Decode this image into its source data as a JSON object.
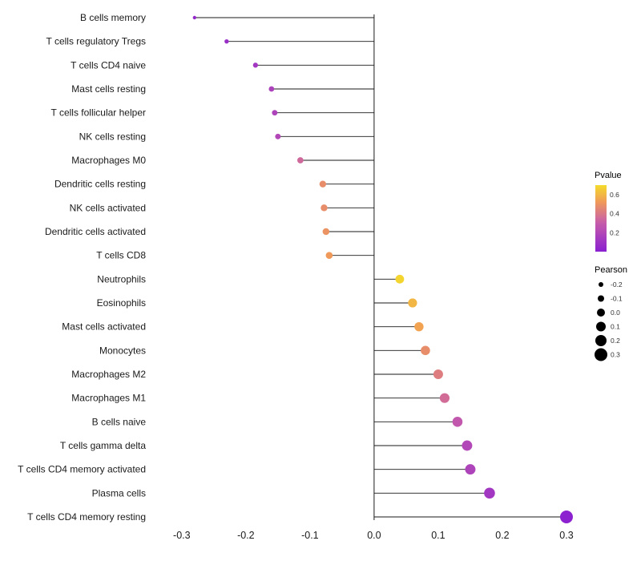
{
  "chart_data": {
    "type": "scatter",
    "subtype": "lollipop",
    "title": "",
    "xlabel": "",
    "ylabel": "",
    "xlim": [
      -0.346,
      0.335
    ],
    "x_ticks": [
      -0.3,
      -0.2,
      -0.1,
      0.0,
      0.1,
      0.2,
      0.3
    ],
    "x_tick_labels": [
      "-0.3",
      "-0.2",
      "-0.1",
      "0.0",
      "0.1",
      "0.2",
      "0.3"
    ],
    "grid": false,
    "stem_color": "#1a1a1a",
    "text_color": "#1a1a1a",
    "points": [
      {
        "label": "B cells memory",
        "pearson": -0.28,
        "pvalue": 0.05
      },
      {
        "label": "T cells regulatory  Tregs",
        "pearson": -0.23,
        "pvalue": 0.08
      },
      {
        "label": "T cells CD4 naive",
        "pearson": -0.185,
        "pvalue": 0.12
      },
      {
        "label": "Mast cells resting",
        "pearson": -0.16,
        "pvalue": 0.17
      },
      {
        "label": "T cells follicular helper",
        "pearson": -0.155,
        "pvalue": 0.18
      },
      {
        "label": "NK cells resting",
        "pearson": -0.15,
        "pvalue": 0.2
      },
      {
        "label": "Macrophages M0",
        "pearson": -0.115,
        "pvalue": 0.35
      },
      {
        "label": "Dendritic cells resting",
        "pearson": -0.08,
        "pvalue": 0.48
      },
      {
        "label": "NK cells activated",
        "pearson": -0.078,
        "pvalue": 0.48
      },
      {
        "label": "Dendritic cells activated",
        "pearson": -0.075,
        "pvalue": 0.5
      },
      {
        "label": "T cells CD8",
        "pearson": -0.07,
        "pvalue": 0.52
      },
      {
        "label": "Neutrophils",
        "pearson": 0.04,
        "pvalue": 0.68
      },
      {
        "label": "Eosinophils",
        "pearson": 0.06,
        "pvalue": 0.6
      },
      {
        "label": "Mast cells activated",
        "pearson": 0.07,
        "pvalue": 0.55
      },
      {
        "label": "Monocytes",
        "pearson": 0.08,
        "pvalue": 0.48
      },
      {
        "label": "Macrophages M2",
        "pearson": 0.1,
        "pvalue": 0.42
      },
      {
        "label": "Macrophages M1",
        "pearson": 0.11,
        "pvalue": 0.36
      },
      {
        "label": "B cells naive",
        "pearson": 0.13,
        "pvalue": 0.28
      },
      {
        "label": "T cells gamma delta",
        "pearson": 0.145,
        "pvalue": 0.2
      },
      {
        "label": "T cells CD4 memory activated",
        "pearson": 0.15,
        "pvalue": 0.18
      },
      {
        "label": "Plasma cells",
        "pearson": 0.18,
        "pvalue": 0.12
      },
      {
        "label": "T cells CD4 memory resting",
        "pearson": 0.3,
        "pvalue": 0.01
      }
    ],
    "legend": {
      "position": "right",
      "color": {
        "title": "Pvalue",
        "domain": [
          0.0,
          0.7
        ],
        "ticks": [
          0.6,
          0.4,
          0.2
        ],
        "tick_labels": [
          "0.6",
          "0.4",
          "0.2"
        ],
        "stops": [
          [
            0.0,
            "#8A1FD1"
          ],
          [
            0.45,
            "#C95FA8"
          ],
          [
            0.75,
            "#F09A58"
          ],
          [
            1.0,
            "#F4DC2A"
          ]
        ]
      },
      "size": {
        "title": "Pearson",
        "ticks": [
          -0.2,
          -0.1,
          0.0,
          0.1,
          0.2,
          0.3
        ],
        "tick_labels": [
          "-0.2",
          "-0.1",
          "0.0",
          "0.1",
          "0.2",
          "0.3"
        ],
        "dot_color": "#000000"
      }
    }
  }
}
